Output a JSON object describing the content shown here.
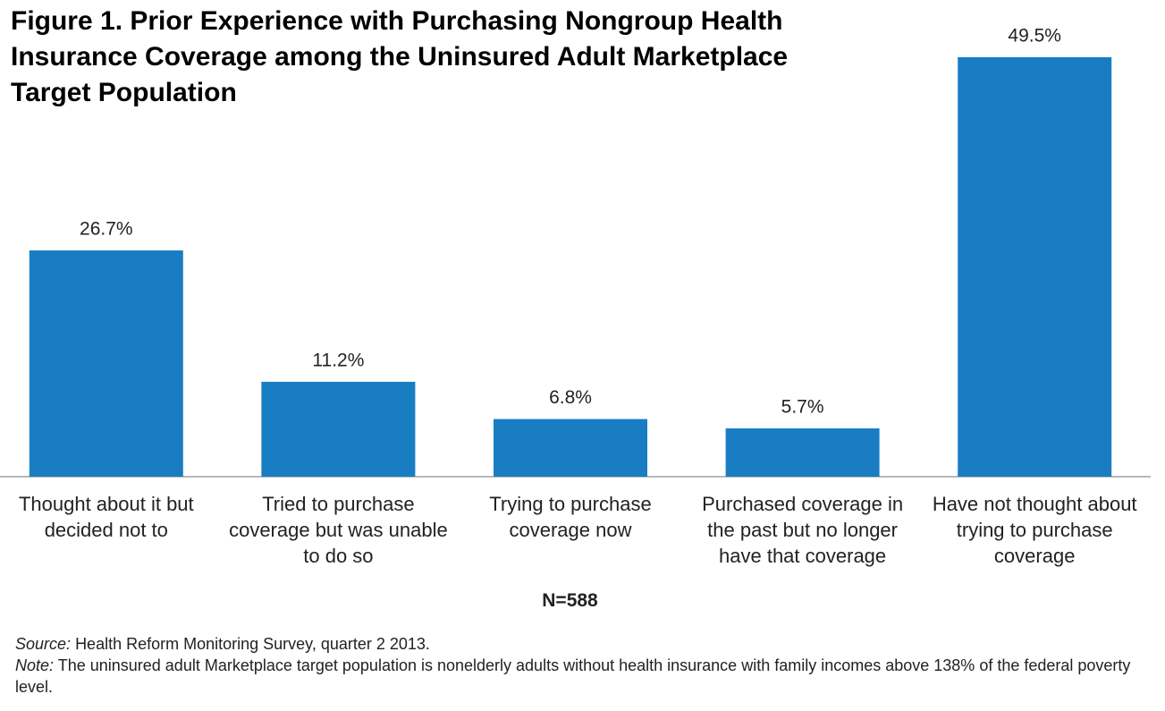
{
  "chart_data": {
    "type": "bar",
    "title": "Figure 1. Prior Experience with Purchasing Nongroup Health Insurance Coverage among the Uninsured Adult Marketplace Target Population",
    "categories": [
      "Thought about it but decided not to",
      "Tried to purchase coverage but was unable to do so",
      "Trying to purchase coverage now",
      "Purchased coverage in the past but no longer have that coverage",
      "Have not thought about trying to purchase coverage"
    ],
    "values": [
      26.7,
      11.2,
      6.8,
      5.7,
      49.5
    ],
    "value_labels": [
      "26.7%",
      "11.2%",
      "6.8%",
      "5.7%",
      "49.5%"
    ],
    "color": "#187dc3",
    "annotation": "N=588",
    "source": {
      "label": "Source:",
      "text": "Health Reform Monitoring Survey, quarter 2 2013."
    },
    "note": {
      "label": "Note:",
      "text": "The uninsured adult  Marketplace target population is nonelderly adults without health insurance with family incomes above 138% of the federal poverty level."
    }
  }
}
